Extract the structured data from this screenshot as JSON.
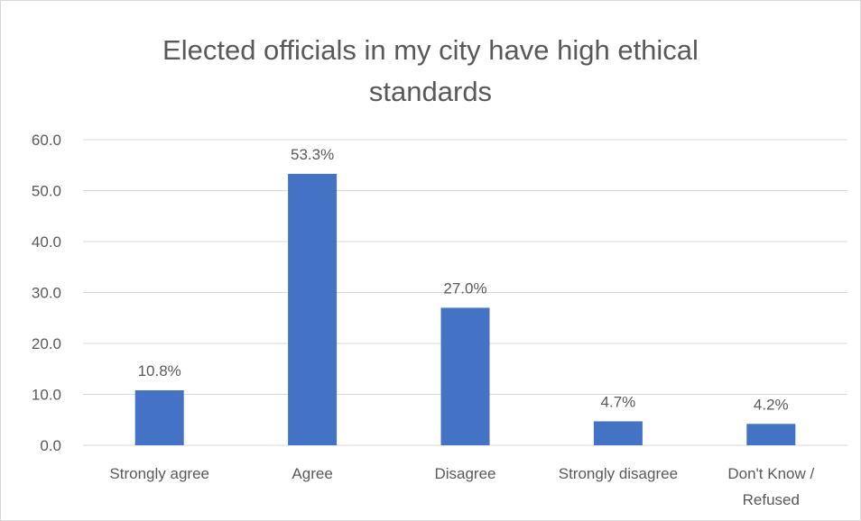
{
  "chart_data": {
    "type": "bar",
    "title": "Elected officials in my city have high ethical standards",
    "categories": [
      "Strongly agree",
      "Agree",
      "Disagree",
      "Strongly disagree",
      "Don't Know / Refused"
    ],
    "category_lines": [
      [
        "Strongly agree"
      ],
      [
        "Agree"
      ],
      [
        "Disagree"
      ],
      [
        "Strongly disagree"
      ],
      [
        "Don't Know /",
        "Refused"
      ]
    ],
    "values": [
      10.8,
      53.3,
      27.0,
      4.7,
      4.2
    ],
    "data_labels": [
      "10.8%",
      "53.3%",
      "27.0%",
      "4.7%",
      "4.2%"
    ],
    "y_ticks": [
      "0.0",
      "10.0",
      "20.0",
      "30.0",
      "40.0",
      "50.0",
      "60.0"
    ],
    "ylim": [
      0,
      60
    ],
    "grid": true,
    "legend": "none",
    "bar_color": "#4472c4",
    "grid_color": "#d9d9d9",
    "text_color": "#595959"
  }
}
